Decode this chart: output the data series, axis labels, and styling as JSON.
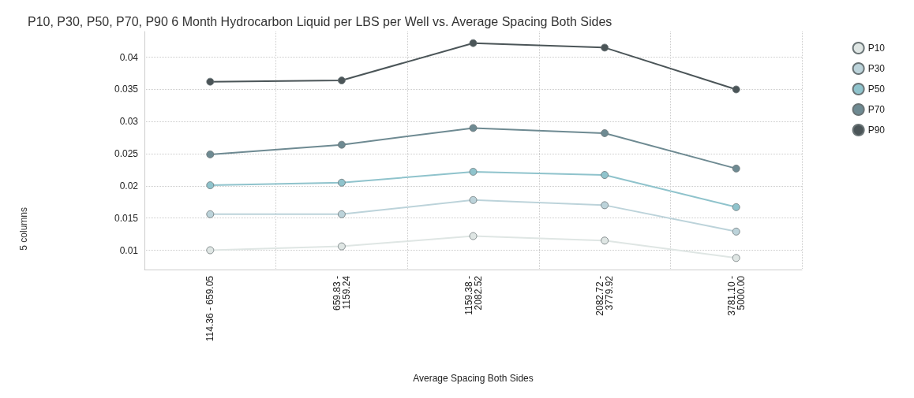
{
  "chart_data": {
    "type": "line",
    "title": "P10, P30, P50, P70, P90 6 Month Hydrocarbon Liquid per LBS per Well vs. Average Spacing Both Sides",
    "xlabel": "Average Spacing Both Sides",
    "categories": [
      "114.36 - 659.05",
      "659.83 -\n1159.24",
      "1159.38 -\n2082.52",
      "2082.72 -\n3779.92",
      "3781.10 -\n5000.00"
    ],
    "series": [
      {
        "name": "P10",
        "color": "#dfe6e4",
        "values": [
          0.01,
          0.0106,
          0.0122,
          0.0115,
          0.0088
        ]
      },
      {
        "name": "P30",
        "color": "#bcd3da",
        "values": [
          0.0156,
          0.0156,
          0.0178,
          0.017,
          0.0129
        ]
      },
      {
        "name": "P50",
        "color": "#8fc3cc",
        "values": [
          0.0201,
          0.0205,
          0.0222,
          0.0217,
          0.0167
        ]
      },
      {
        "name": "P70",
        "color": "#6e8a92",
        "values": [
          0.0249,
          0.0264,
          0.029,
          0.0282,
          0.0227
        ]
      },
      {
        "name": "P90",
        "color": "#4b5558",
        "values": [
          0.0362,
          0.0364,
          0.0422,
          0.0415,
          0.035
        ]
      }
    ],
    "ylim": [
      0.007,
      0.044
    ],
    "yticks": [
      0.01,
      0.015,
      0.02,
      0.025,
      0.03,
      0.035,
      0.04
    ],
    "grid": true,
    "legend": "top right",
    "marker": "circle",
    "line_style": "solid",
    "annotations": [
      "5 columns"
    ]
  }
}
